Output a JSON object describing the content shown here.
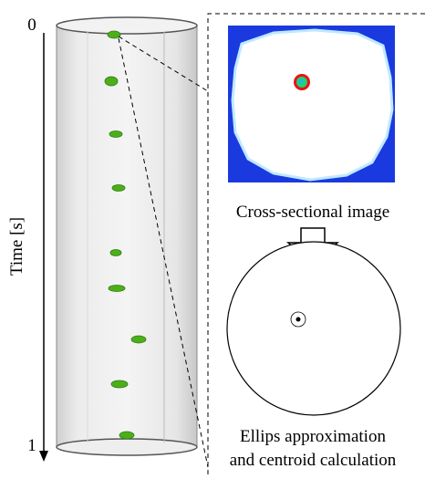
{
  "axis": {
    "start_label": "0",
    "end_label": "1",
    "title": "Time [s]"
  },
  "panels": {
    "image_caption": "Cross-sectional image",
    "fit_caption_line1": "Ellips approximation",
    "fit_caption_line2": "and centroid calculation"
  }
}
